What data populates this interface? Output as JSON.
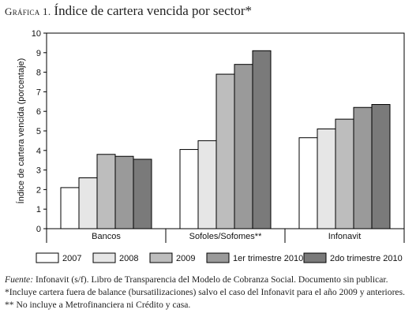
{
  "header": {
    "label": "Gráfica 1.",
    "title": "Índice de cartera vencida por sector*"
  },
  "chart_data": {
    "type": "bar",
    "title": "Índice de cartera vencida por sector*",
    "ylabel": "Índice de cartera vencida (porcentaje)",
    "xlabel": "",
    "ylim": [
      0,
      10
    ],
    "yticks": [
      "0",
      "1",
      "2",
      "3",
      "4",
      "5",
      "6",
      "7",
      "8",
      "9",
      "10"
    ],
    "grid": false,
    "legend_position": "bottom",
    "categories": [
      "Bancos",
      "Sofoles/Sofomes**",
      "Infonavit"
    ],
    "series": [
      {
        "name": "2007",
        "color": "#ffffff",
        "values": [
          2.1,
          4.05,
          4.65
        ]
      },
      {
        "name": "2008",
        "color": "#e6e6e6",
        "values": [
          2.6,
          4.5,
          5.1
        ]
      },
      {
        "name": "2009",
        "color": "#bdbdbd",
        "values": [
          3.8,
          7.9,
          5.6
        ]
      },
      {
        "name": "1er trimestre 2010",
        "color": "#9a9a9a",
        "values": [
          3.7,
          8.4,
          6.2
        ]
      },
      {
        "name": "2do trimestre 2010",
        "color": "#7a7a7a",
        "values": [
          3.55,
          9.1,
          6.35
        ]
      }
    ]
  },
  "notes": {
    "source_label": "Fuente:",
    "source_text": " Infonavit (s/f). Libro de Transparencia del Modelo de Cobranza Social. Documento sin publicar.",
    "note1": "*Incluye cartera fuera de balance (bursatilizaciones) salvo el caso del Infonavit para el año 2009 y anteriores.",
    "note2": "** No incluye a Metrofinanciera ni Crédito y casa."
  }
}
